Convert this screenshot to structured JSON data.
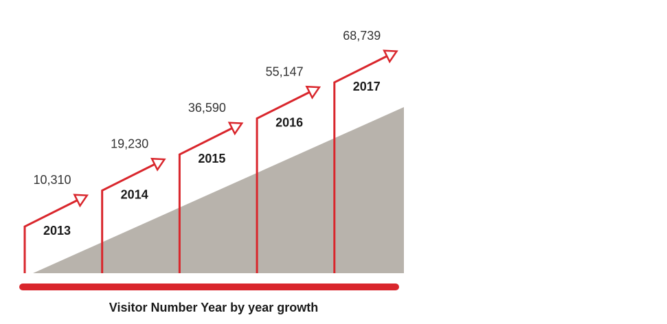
{
  "chart_data": {
    "type": "bar",
    "title": "Visitor Number Year by year growth",
    "categories": [
      "2013",
      "2014",
      "2015",
      "2016",
      "2017"
    ],
    "value_labels": [
      "10,310",
      "19,230",
      "36,590",
      "55,147",
      "68,739"
    ],
    "values": [
      10310,
      19230,
      36590,
      55147,
      68739
    ],
    "xlabel": "",
    "ylabel": "",
    "grid": false
  },
  "colors": {
    "accent": "#d9262c",
    "wedge": "#b8b3ac",
    "value_text": "#333333",
    "year_text": "#1a1a1a"
  }
}
